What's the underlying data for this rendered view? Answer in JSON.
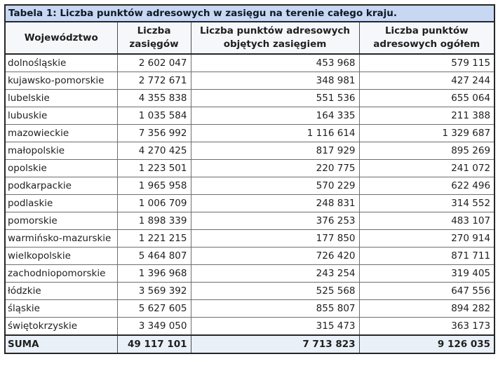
{
  "table": {
    "title": "Tabela 1: Liczba punktów adresowych w zasięgu na terenie całego kraju.",
    "columns": [
      "Województwo",
      "Liczba zasięgów",
      "Liczba punktów adresowych objętych zasięgiem",
      "Liczba punktów adresowych ogółem"
    ],
    "rows": [
      {
        "wojewodztwo": "dolnośląskie",
        "liczba_zasiegow": "2 602 047",
        "punkty_objete": "453 968",
        "punkty_ogolem": "579 115"
      },
      {
        "wojewodztwo": "kujawsko-pomorskie",
        "liczba_zasiegow": "2 772 671",
        "punkty_objete": "348 981",
        "punkty_ogolem": "427 244"
      },
      {
        "wojewodztwo": "lubelskie",
        "liczba_zasiegow": "4 355 838",
        "punkty_objete": "551 536",
        "punkty_ogolem": "655 064"
      },
      {
        "wojewodztwo": "lubuskie",
        "liczba_zasiegow": "1 035 584",
        "punkty_objete": "164 335",
        "punkty_ogolem": "211 388"
      },
      {
        "wojewodztwo": "mazowieckie",
        "liczba_zasiegow": "7 356 992",
        "punkty_objete": "1 116 614",
        "punkty_ogolem": "1 329 687"
      },
      {
        "wojewodztwo": "małopolskie",
        "liczba_zasiegow": "4 270 425",
        "punkty_objete": "817 929",
        "punkty_ogolem": "895 269"
      },
      {
        "wojewodztwo": "opolskie",
        "liczba_zasiegow": "1 223 501",
        "punkty_objete": "220 775",
        "punkty_ogolem": "241 072"
      },
      {
        "wojewodztwo": "podkarpackie",
        "liczba_zasiegow": "1 965 958",
        "punkty_objete": "570 229",
        "punkty_ogolem": "622 496"
      },
      {
        "wojewodztwo": "podlaskie",
        "liczba_zasiegow": "1 006 709",
        "punkty_objete": "248 831",
        "punkty_ogolem": "314 552"
      },
      {
        "wojewodztwo": "pomorskie",
        "liczba_zasiegow": "1 898 339",
        "punkty_objete": "376 253",
        "punkty_ogolem": "483 107"
      },
      {
        "wojewodztwo": "warmińsko-mazurskie",
        "liczba_zasiegow": "1 221 215",
        "punkty_objete": "177 850",
        "punkty_ogolem": "270 914"
      },
      {
        "wojewodztwo": "wielkopolskie",
        "liczba_zasiegow": "5 464 807",
        "punkty_objete": "726 420",
        "punkty_ogolem": "871 711"
      },
      {
        "wojewodztwo": "zachodniopomorskie",
        "liczba_zasiegow": "1 396 968",
        "punkty_objete": "243 254",
        "punkty_ogolem": "319 405"
      },
      {
        "wojewodztwo": "łódzkie",
        "liczba_zasiegow": "3 569 392",
        "punkty_objete": "525 568",
        "punkty_ogolem": "647 556"
      },
      {
        "wojewodztwo": "śląskie",
        "liczba_zasiegow": "5 627 605",
        "punkty_objete": "855 807",
        "punkty_ogolem": "894 282"
      },
      {
        "wojewodztwo": "świętokrzyskie",
        "liczba_zasiegow": "3 349 050",
        "punkty_objete": "315 473",
        "punkty_ogolem": "363 173"
      }
    ],
    "suma": {
      "label": "SUMA",
      "liczba_zasiegow": "49 117 101",
      "punkty_objete": "7 713 823",
      "punkty_ogolem": "9 126 035"
    }
  },
  "colors": {
    "title_background": "#c8d8f2",
    "header_background": "#f5f7fa",
    "summary_background": "#eaf0f8",
    "outer_border": "#262626",
    "grid_line": "#6e6e6e",
    "text": "#1f1f1f"
  }
}
